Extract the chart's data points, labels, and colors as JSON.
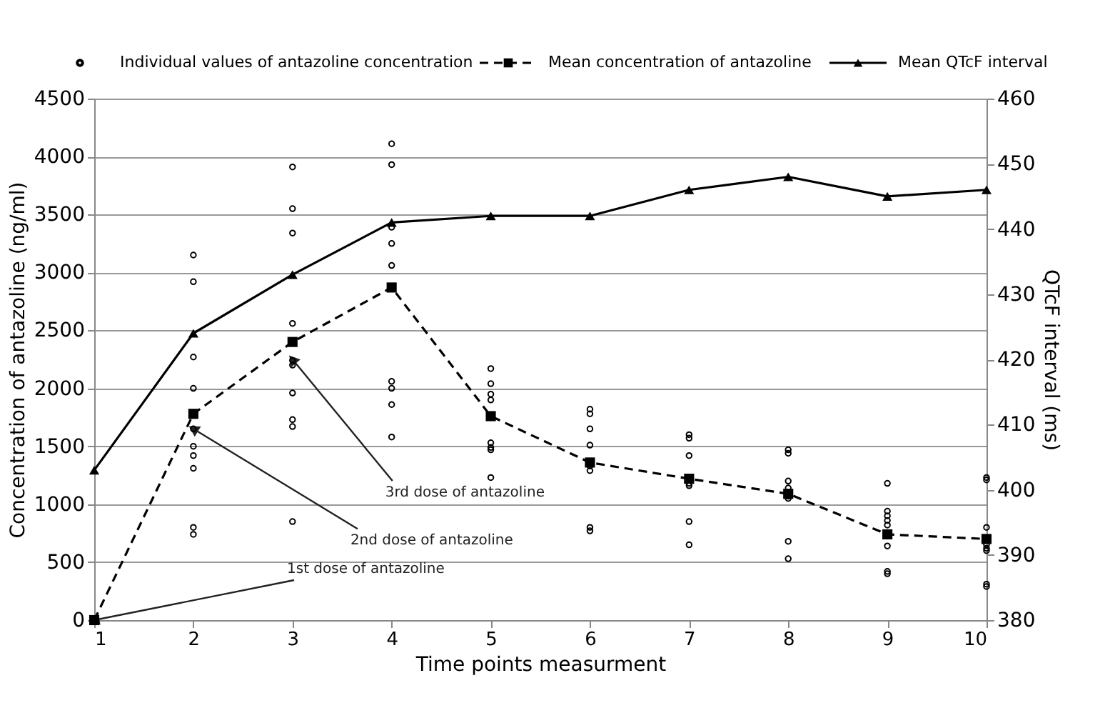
{
  "chart_data": {
    "type": "line",
    "xlabel": "Time  points measurment",
    "ylabel": "Concentration of antazoline (ng/ml)",
    "y2label": "QTcF interval (ms)",
    "xlim": [
      1,
      10
    ],
    "xticks": [
      1,
      2,
      3,
      4,
      5,
      6,
      7,
      8,
      9,
      10
    ],
    "ylim": [
      0,
      4500
    ],
    "yticks": [
      0,
      500,
      1000,
      1500,
      2000,
      2500,
      3000,
      3500,
      4000,
      4500
    ],
    "y2lim": [
      380,
      460
    ],
    "y2ticks": [
      380,
      390,
      400,
      410,
      420,
      430,
      440,
      450,
      460
    ],
    "grid": "y",
    "legend": "top",
    "series": [
      {
        "name": "Individual values of antazoline concentration",
        "type": "scatter",
        "marker": "circle",
        "color": "#000000",
        "x": [
          2,
          2,
          2,
          2,
          2,
          2,
          2,
          2,
          2,
          2,
          3,
          3,
          3,
          3,
          3,
          3,
          3,
          3,
          3,
          3,
          4,
          4,
          4,
          4,
          4,
          4,
          4,
          4,
          4,
          5,
          5,
          5,
          5,
          5,
          5,
          5,
          5,
          5,
          6,
          6,
          6,
          6,
          6,
          6,
          6,
          6,
          7,
          7,
          7,
          7,
          7,
          7,
          7,
          8,
          8,
          8,
          8,
          8,
          8,
          8,
          8,
          9,
          9,
          9,
          9,
          9,
          9,
          9,
          9,
          9,
          10,
          10,
          10,
          10,
          10,
          10,
          10,
          10,
          10
        ],
        "values": [
          3150,
          2920,
          2270,
          2000,
          1650,
          1500,
          1420,
          1310,
          800,
          740,
          3910,
          3550,
          3340,
          2560,
          2240,
          2200,
          1960,
          1730,
          1670,
          850,
          4110,
          3930,
          3390,
          3250,
          3060,
          2060,
          2000,
          1860,
          1580,
          2170,
          2040,
          1950,
          1900,
          1760,
          1530,
          1490,
          1470,
          1230,
          1820,
          1780,
          1650,
          1510,
          1330,
          1290,
          800,
          770,
          1600,
          1570,
          1420,
          1180,
          1160,
          850,
          650,
          1470,
          1440,
          1200,
          1140,
          1070,
          1050,
          680,
          530,
          1180,
          940,
          900,
          860,
          820,
          750,
          640,
          420,
          400,
          1230,
          1210,
          800,
          700,
          650,
          620,
          600,
          310,
          290
        ]
      },
      {
        "name": "Mean concentration of antazoline",
        "marker": "square",
        "line_style": "dashed",
        "color": "#000000",
        "x": [
          1,
          2,
          3,
          4,
          5,
          6,
          7,
          8,
          9,
          10
        ],
        "values": [
          0,
          1780,
          2400,
          2870,
          1760,
          1360,
          1220,
          1090,
          740,
          700
        ]
      },
      {
        "name": "Mean QTcF interval",
        "axis": "y2",
        "marker": "triangle",
        "line_style": "solid",
        "color": "#000000",
        "x": [
          1,
          2,
          3,
          4,
          5,
          6,
          7,
          8,
          9,
          10
        ],
        "values": [
          403,
          424,
          433,
          441,
          442,
          442,
          446,
          448,
          445,
          446
        ]
      }
    ],
    "annotations": [
      {
        "text": "1st dose of antazoline",
        "x": 1,
        "y": 0
      },
      {
        "text": "2nd dose of antazoline",
        "x": 2,
        "y": 1650
      },
      {
        "text": "3rd dose of antazoline",
        "x": 3,
        "y": 2250
      }
    ]
  }
}
